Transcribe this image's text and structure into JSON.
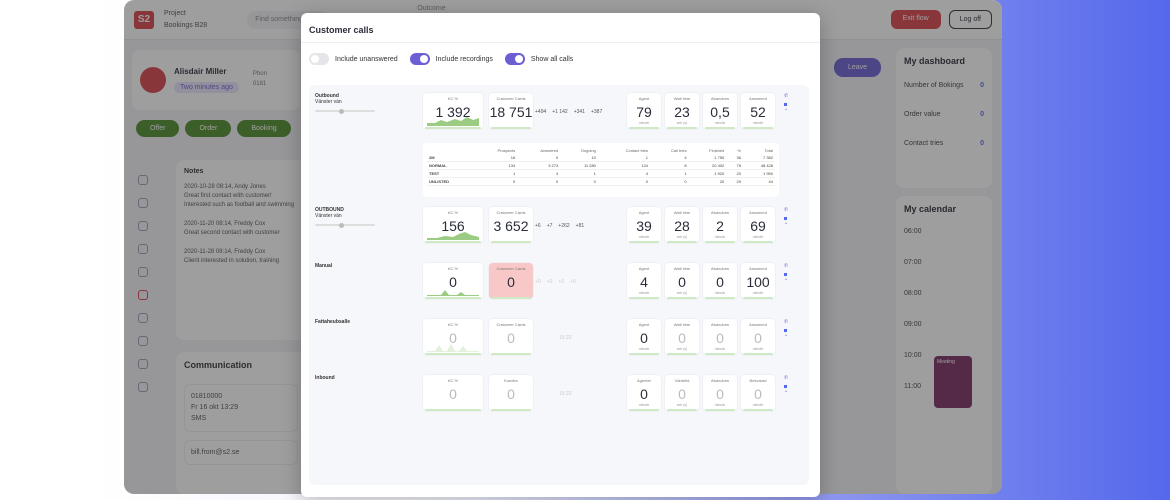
{
  "app": {
    "logo": "S2",
    "project_label": "Project",
    "project_name": "Bookings B28",
    "search_placeholder": "Find something",
    "outcome_label": "Outcome",
    "exit_label": "Exit flow",
    "logoff_label": "Log off",
    "agent_name": "Alisdair Miller",
    "agent_status": "Two minutes ago",
    "phone_label": "Phon",
    "phone_value": "0181",
    "pills": [
      "Offer",
      "Order",
      "Booking"
    ],
    "leave_label": "Leave",
    "notes": {
      "title": "Notes",
      "entries": [
        {
          "head": "2020-10-28 08:14, Andy Jones",
          "body": "Great first contact with customer! Interested such as football and swimming"
        },
        {
          "head": "2020-11-20 08:14, Freddy Cox",
          "body": "Great second contact with customer"
        },
        {
          "head": "2020-11-28 08:14, Freddy Cox",
          "body": "Client interested in solution, training"
        }
      ]
    },
    "communication": {
      "title": "Communication",
      "items": [
        {
          "number": "01810000",
          "date": "Fr 16 okt 13:29",
          "type": "SMS"
        },
        {
          "number": "bill.from@s2.se"
        }
      ]
    },
    "dashboard": {
      "title": "My dashboard",
      "rows": [
        {
          "label": "Number of Bokings",
          "value": "0"
        },
        {
          "label": "Order value",
          "value": "0"
        },
        {
          "label": "Contact tries",
          "value": "0"
        }
      ]
    },
    "calendar": {
      "title": "My calendar",
      "hours": [
        "06:00",
        "07:00",
        "08:00",
        "09:00",
        "10:00",
        "11:00"
      ],
      "meeting": "Meeting"
    }
  },
  "modal": {
    "title": "Customer calls",
    "toggles": [
      {
        "label": "Include unanswered",
        "on": false
      },
      {
        "label": "Include recordings",
        "on": true
      },
      {
        "label": "Show all calls",
        "on": true
      }
    ],
    "rows": [
      {
        "name": "Outbound",
        "label_lines": [
          "Outbound",
          "Vänster vän"
        ],
        "kpi": {
          "label": "KC %",
          "value": "1 392"
        },
        "cc": {
          "label": "Customer Cards",
          "value": "18 751"
        },
        "deltas": [
          "+494",
          "+1 142",
          "+341",
          "+387"
        ],
        "agent": {
          "label": "Agent",
          "value": "79",
          "sub": "minute"
        },
        "wait": {
          "label": "Wait time",
          "value": "23",
          "sub": "sek (s)"
        },
        "aband": {
          "label": "Abandons",
          "value": "0,5",
          "sub": "minute"
        },
        "answered": {
          "label": "Answered",
          "value": "52",
          "sub": "minute"
        }
      },
      {
        "name": "OUTBOUND",
        "label_lines": [
          "OUTBOUND",
          "Vänster vän"
        ],
        "kpi": {
          "label": "KC %",
          "value": "156"
        },
        "cc": {
          "label": "Customer Cards",
          "value": "3 652"
        },
        "deltas": [
          "+6",
          "+7",
          "+262",
          "+81"
        ],
        "agent": {
          "label": "Agent",
          "value": "39",
          "sub": "minute"
        },
        "wait": {
          "label": "Wait time",
          "value": "28",
          "sub": "sek (s)"
        },
        "aband": {
          "label": "Abandons",
          "value": "2",
          "sub": "minute"
        },
        "answered": {
          "label": "Answered",
          "value": "69",
          "sub": "minute"
        }
      },
      {
        "name": "Manual",
        "label_lines": [
          "Manual"
        ],
        "kpi": {
          "label": "KC %",
          "value": "0"
        },
        "cc": {
          "label": "Customer Cards",
          "value": "0"
        },
        "deltas": [
          "+0",
          "+0",
          "+0",
          "+0"
        ],
        "agent": {
          "label": "Agent",
          "value": "4",
          "sub": "minute"
        },
        "wait": {
          "label": "Wait time",
          "value": "0",
          "sub": "sek (s)"
        },
        "aband": {
          "label": "Abandons",
          "value": "0",
          "sub": "minute"
        },
        "answered": {
          "label": "Answered",
          "value": "100",
          "sub": "minute"
        }
      },
      {
        "name": "Fattaheubsalle",
        "label_lines": [
          "Fattaheubsalle"
        ],
        "kpi": {
          "label": "KC %",
          "value": "0"
        },
        "cc": {
          "label": "Customer Cards",
          "value": "0"
        },
        "deltas": [
          "16:22"
        ],
        "agent": {
          "label": "Agent",
          "value": "0",
          "sub": "minute"
        },
        "wait": {
          "label": "Wait time",
          "value": "0",
          "sub": "sek (s)"
        },
        "aband": {
          "label": "Abandons",
          "value": "0",
          "sub": "minute"
        },
        "answered": {
          "label": "Answered",
          "value": "0",
          "sub": "minute"
        }
      },
      {
        "name": "Inbound",
        "label_lines": [
          "Inbound"
        ],
        "kpi": {
          "label": "KC %",
          "value": "0"
        },
        "cc": {
          "label": "Kunden",
          "value": "0"
        },
        "deltas": [
          "16:22"
        ],
        "agent": {
          "label": "Agenter",
          "value": "0",
          "sub": "minute"
        },
        "wait": {
          "label": "Väntetid",
          "value": "0",
          "sub": "sek (s)"
        },
        "aband": {
          "label": "Abandons",
          "value": "0",
          "sub": "minute"
        },
        "answered": {
          "label": "Besvarad",
          "value": "0",
          "sub": "minute"
        }
      }
    ],
    "table": {
      "headers": [
        "",
        "Prospects",
        "Answered",
        "Ongoing",
        "Contact tries",
        "Call tries",
        "Finished",
        "%",
        "Total"
      ],
      "rows": [
        [
          "2M",
          "16",
          "0",
          "10",
          "1",
          "4",
          "1 750",
          "36",
          "7 382"
        ],
        [
          "NORMAL",
          "134",
          "3 273",
          "11 280",
          "124",
          "8",
          "20 402",
          "75",
          "48 428"
        ],
        [
          "TEST",
          "1",
          "4",
          "1",
          "4",
          "1",
          "1 920",
          "20",
          "1 950"
        ],
        [
          "UNLISTED",
          "0",
          "0",
          "0",
          "0",
          "0",
          "20",
          "29",
          "44"
        ]
      ]
    }
  }
}
